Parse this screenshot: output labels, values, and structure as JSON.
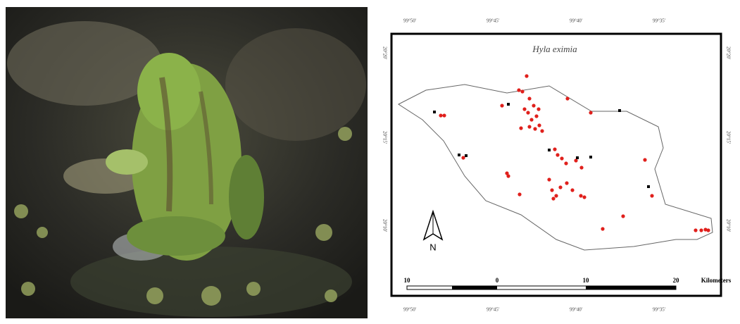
{
  "map": {
    "title": "Hyla eximia",
    "top_labels": [
      "99°50'",
      "99°45'",
      "99°40'",
      "99°35'"
    ],
    "bottom_labels": [
      "99°50'",
      "99°45'",
      "99°40'",
      "99°35'"
    ],
    "left_labels": [
      "20°20'",
      "20°15'",
      "20°10'"
    ],
    "right_labels": [
      "20°20'",
      "20°15'",
      "20°10'"
    ],
    "north": "N",
    "scale": {
      "labels": [
        "10",
        "0",
        "10",
        "20"
      ],
      "unit": "Kilometers"
    }
  }
}
